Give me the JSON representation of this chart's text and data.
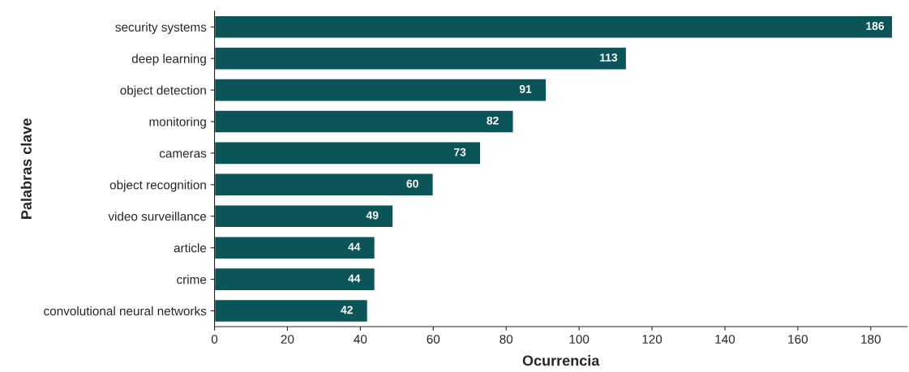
{
  "chart_data": {
    "type": "bar",
    "orientation": "horizontal",
    "categories": [
      "security systems",
      "deep learning",
      "object detection",
      "monitoring",
      "cameras",
      "object recognition",
      "video surveillance",
      "article",
      "crime",
      "convolutional neural networks"
    ],
    "values": [
      186,
      113,
      91,
      82,
      73,
      60,
      49,
      44,
      44,
      42
    ],
    "color": "#0b5458",
    "xlabel": "Ocurrencia",
    "ylabel": "Palabras clave",
    "xlim": [
      0,
      190
    ],
    "xticks": [
      0,
      20,
      40,
      60,
      80,
      100,
      120,
      140,
      160,
      180
    ],
    "grid": false,
    "data_labels": true
  }
}
